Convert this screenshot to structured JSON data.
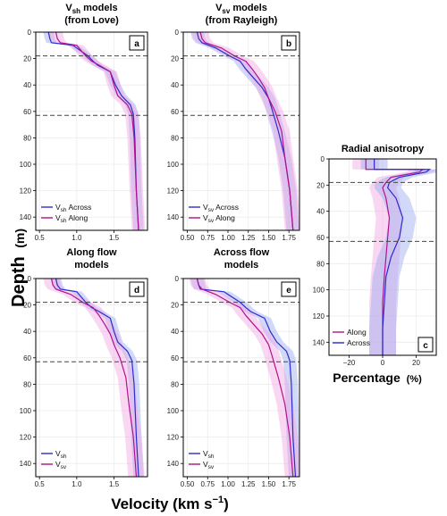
{
  "figure": {
    "ylabel": "Depth",
    "ylabel_unit": "(m)",
    "xlabel_shared": "Velocity (km s",
    "xlabel_shared_sup": "−1",
    "xlabel_shared_end": ")",
    "xlabel_c": "Percentage",
    "xlabel_c_unit": "(%)"
  },
  "colors": {
    "blue": "#2b2bd1",
    "magenta": "#b0128f",
    "blue_fill": "#9aa8f0",
    "magenta_fill": "#f1a6e3"
  },
  "chart_data": [
    {
      "id": "a",
      "type": "line",
      "title_line1_main": "V",
      "title_line1_sub": "sh",
      "title_line1_rest": " models",
      "title_line2": "(from Love)",
      "letter": "a",
      "xlim": [
        0.45,
        1.95
      ],
      "ylim": [
        0,
        150
      ],
      "xticks": [
        0.5,
        1.0,
        1.5
      ],
      "xtick_labels": [
        "0.5",
        "1.0",
        "1.5"
      ],
      "yticks": [
        0,
        20,
        40,
        60,
        80,
        100,
        120,
        140
      ],
      "ytick_labels": [
        "0",
        "20",
        "40",
        "60",
        "80",
        "100",
        "120",
        "140"
      ],
      "hlines": [
        18,
        63
      ],
      "legend": [
        {
          "pre": "V",
          "sub": "sh",
          "post": " Across",
          "color": "blue"
        },
        {
          "pre": "V",
          "sub": "sh",
          "post": " Along",
          "color": "magenta"
        }
      ],
      "series": [
        {
          "color": "blue",
          "band": 0.07,
          "x": [
            0.62,
            0.64,
            0.66,
            0.95,
            1.15,
            1.22,
            1.28,
            1.45,
            1.52,
            1.6,
            1.72,
            1.76,
            1.78,
            1.8,
            1.83
          ],
          "y": [
            0,
            5,
            8,
            10,
            18,
            22,
            25,
            30,
            40,
            48,
            55,
            62,
            80,
            120,
            150
          ]
        },
        {
          "color": "magenta",
          "band": 0.09,
          "x": [
            0.72,
            0.74,
            0.78,
            1.0,
            1.12,
            1.2,
            1.3,
            1.45,
            1.5,
            1.55,
            1.68,
            1.74,
            1.77,
            1.8,
            1.83
          ],
          "y": [
            0,
            5,
            8,
            10,
            18,
            22,
            25,
            30,
            40,
            48,
            55,
            62,
            80,
            120,
            150
          ]
        }
      ]
    },
    {
      "id": "b",
      "type": "line",
      "title_line1_main": "V",
      "title_line1_sub": "sv",
      "title_line1_rest": " models",
      "title_line2": "(from Rayleigh)",
      "letter": "b",
      "xlim": [
        0.45,
        1.88
      ],
      "ylim": [
        0,
        150
      ],
      "xticks": [
        0.5,
        0.75,
        1.0,
        1.25,
        1.5,
        1.75
      ],
      "xtick_labels": [
        "0.50",
        "0.75",
        "1.00",
        "1.25",
        "1.50",
        "1.75"
      ],
      "yticks": [
        0,
        20,
        40,
        60,
        80,
        100,
        120,
        140
      ],
      "ytick_labels": [
        "0",
        "20",
        "40",
        "60",
        "80",
        "100",
        "120",
        "140"
      ],
      "hlines": [
        18,
        63
      ],
      "legend": [
        {
          "pre": "V",
          "sub": "sv",
          "post": " Across",
          "color": "blue"
        },
        {
          "pre": "V",
          "sub": "sv",
          "post": " Along",
          "color": "magenta"
        }
      ],
      "series": [
        {
          "color": "blue",
          "band": 0.08,
          "x": [
            0.62,
            0.64,
            0.68,
            0.85,
            1.02,
            1.15,
            1.22,
            1.32,
            1.42,
            1.5,
            1.55,
            1.62,
            1.7,
            1.76,
            1.8
          ],
          "y": [
            0,
            5,
            8,
            12,
            18,
            22,
            28,
            35,
            42,
            50,
            60,
            75,
            95,
            120,
            150
          ]
        },
        {
          "color": "magenta",
          "band": 0.1,
          "x": [
            0.66,
            0.68,
            0.72,
            0.92,
            1.08,
            1.22,
            1.3,
            1.38,
            1.45,
            1.5,
            1.58,
            1.66,
            1.7,
            1.76,
            1.8
          ],
          "y": [
            0,
            5,
            8,
            12,
            18,
            22,
            28,
            35,
            42,
            50,
            60,
            75,
            95,
            120,
            150
          ]
        }
      ]
    },
    {
      "id": "c",
      "type": "line",
      "title_line1_main": "Radial anisotropy",
      "title_line1_sub": "",
      "title_line1_rest": "",
      "title_line2": "",
      "letter": "c",
      "xlim": [
        -32,
        32
      ],
      "ylim": [
        0,
        150
      ],
      "xticks": [
        -20,
        0,
        20
      ],
      "xtick_labels": [
        "−20",
        "0",
        "20"
      ],
      "yticks": [
        0,
        20,
        40,
        60,
        80,
        100,
        120,
        140
      ],
      "ytick_labels": [
        "0",
        "20",
        "40",
        "60",
        "80",
        "100",
        "120",
        "140"
      ],
      "hlines": [
        18,
        63
      ],
      "legend": [
        {
          "pre": "Along",
          "sub": "",
          "post": "",
          "color": "magenta"
        },
        {
          "pre": "Across",
          "sub": "",
          "post": "",
          "color": "blue"
        }
      ],
      "series": [
        {
          "color": "magenta",
          "band": 8,
          "x": [
            -10,
            -10,
            24,
            22,
            5,
            2,
            0,
            2,
            4,
            3,
            2,
            1,
            0,
            0,
            0
          ],
          "y": [
            0,
            8,
            8,
            10,
            14,
            18,
            22,
            30,
            45,
            60,
            75,
            90,
            110,
            130,
            150
          ]
        },
        {
          "color": "blue",
          "band": 8,
          "x": [
            -5,
            -5,
            28,
            26,
            10,
            4,
            3,
            8,
            12,
            10,
            5,
            2,
            1,
            0,
            0
          ],
          "y": [
            0,
            8,
            8,
            10,
            14,
            18,
            22,
            30,
            45,
            60,
            75,
            90,
            110,
            130,
            150
          ]
        }
      ]
    },
    {
      "id": "d",
      "type": "line",
      "title_line1_main": "Along flow",
      "title_line1_sub": "",
      "title_line1_rest": "",
      "title_line2": "models",
      "letter": "d",
      "xlim": [
        0.45,
        1.95
      ],
      "ylim": [
        0,
        150
      ],
      "xticks": [
        0.5,
        1.0,
        1.5
      ],
      "xtick_labels": [
        "0.5",
        "1.0",
        "1.5"
      ],
      "yticks": [
        0,
        20,
        40,
        60,
        80,
        100,
        120,
        140
      ],
      "ytick_labels": [
        "0",
        "20",
        "40",
        "60",
        "80",
        "100",
        "120",
        "140"
      ],
      "hlines": [
        18,
        63
      ],
      "legend": [
        {
          "pre": "V",
          "sub": "sh",
          "post": "",
          "color": "blue"
        },
        {
          "pre": "V",
          "sub": "sv",
          "post": "",
          "color": "magenta"
        }
      ],
      "series": [
        {
          "color": "blue",
          "band": 0.07,
          "x": [
            0.72,
            0.74,
            0.78,
            1.0,
            1.12,
            1.2,
            1.3,
            1.45,
            1.5,
            1.55,
            1.68,
            1.74,
            1.77,
            1.8,
            1.83
          ],
          "y": [
            0,
            5,
            8,
            10,
            18,
            22,
            25,
            30,
            40,
            48,
            55,
            62,
            80,
            120,
            150
          ]
        },
        {
          "color": "magenta",
          "band": 0.11,
          "x": [
            0.66,
            0.68,
            0.72,
            0.92,
            1.08,
            1.22,
            1.3,
            1.38,
            1.45,
            1.5,
            1.58,
            1.66,
            1.7,
            1.76,
            1.8
          ],
          "y": [
            0,
            5,
            8,
            12,
            18,
            22,
            28,
            35,
            42,
            50,
            60,
            75,
            95,
            120,
            150
          ]
        }
      ]
    },
    {
      "id": "e",
      "type": "line",
      "title_line1_main": "Across flow",
      "title_line1_sub": "",
      "title_line1_rest": "",
      "title_line2": "models",
      "letter": "e",
      "xlim": [
        0.45,
        1.88
      ],
      "ylim": [
        0,
        150
      ],
      "xticks": [
        0.5,
        0.75,
        1.0,
        1.25,
        1.5,
        1.75
      ],
      "xtick_labels": [
        "0.50",
        "0.75",
        "1.00",
        "1.25",
        "1.50",
        "1.75"
      ],
      "yticks": [
        0,
        20,
        40,
        60,
        80,
        100,
        120,
        140
      ],
      "ytick_labels": [
        "0",
        "20",
        "40",
        "60",
        "80",
        "100",
        "120",
        "140"
      ],
      "hlines": [
        18,
        63
      ],
      "legend": [
        {
          "pre": "V",
          "sub": "sh",
          "post": "",
          "color": "blue"
        },
        {
          "pre": "V",
          "sub": "sv",
          "post": "",
          "color": "magenta"
        }
      ],
      "series": [
        {
          "color": "blue",
          "band": 0.08,
          "x": [
            0.62,
            0.64,
            0.66,
            0.95,
            1.15,
            1.22,
            1.28,
            1.45,
            1.52,
            1.6,
            1.72,
            1.76,
            1.78,
            1.8,
            1.83
          ],
          "y": [
            0,
            5,
            8,
            10,
            18,
            22,
            25,
            30,
            40,
            48,
            55,
            62,
            80,
            120,
            150
          ]
        },
        {
          "color": "magenta",
          "band": 0.1,
          "x": [
            0.62,
            0.64,
            0.68,
            0.85,
            1.02,
            1.15,
            1.22,
            1.32,
            1.42,
            1.5,
            1.55,
            1.62,
            1.7,
            1.76,
            1.8
          ],
          "y": [
            0,
            5,
            8,
            12,
            18,
            22,
            28,
            35,
            42,
            50,
            60,
            75,
            95,
            120,
            150
          ]
        }
      ]
    }
  ]
}
